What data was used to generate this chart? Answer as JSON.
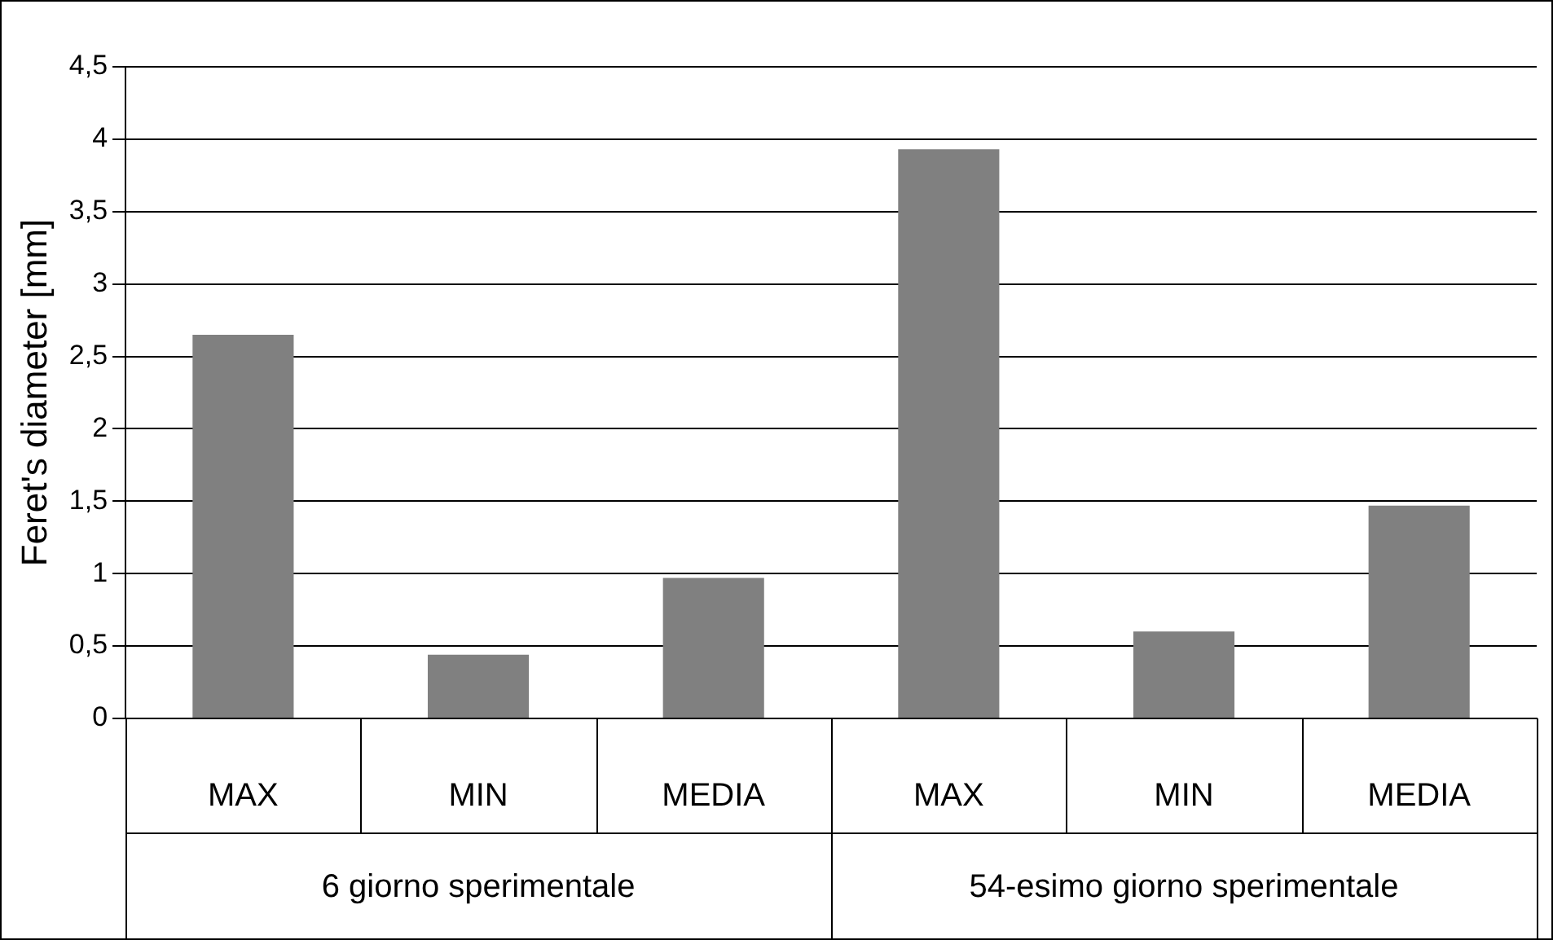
{
  "chart_data": {
    "type": "bar",
    "ylabel": "Feret's diameter [mm]",
    "categories": [
      "MAX",
      "MIN",
      "MEDIA",
      "MAX",
      "MIN",
      "MEDIA"
    ],
    "values": [
      2.65,
      0.44,
      0.97,
      3.93,
      0.6,
      1.47
    ],
    "color": "#808080",
    "ylim": [
      0,
      4.5
    ],
    "yticks": [
      0,
      {
        "value": 0.5,
        "label": "0,5"
      },
      1,
      {
        "value": 1.5,
        "label": "1,5"
      },
      2,
      {
        "value": 2.5,
        "label": "2,5"
      },
      3,
      {
        "value": 3.5,
        "label": "3,5"
      },
      4,
      {
        "value": 4.5,
        "label": "4,5"
      }
    ],
    "grid": "y",
    "annotations": [
      "6 giorno sperimentale",
      "54-esimo giorno sperimentale"
    ]
  }
}
